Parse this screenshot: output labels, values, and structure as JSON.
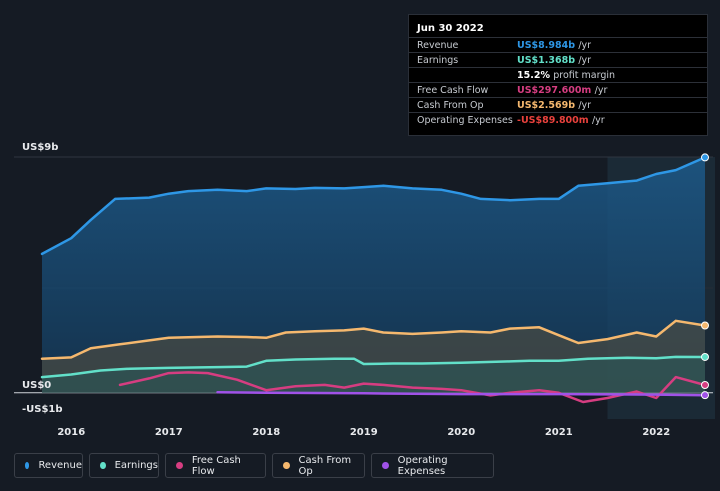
{
  "chart_data": {
    "type": "area",
    "y_top_label": "US$9b",
    "y_zero_label": "US$0",
    "y_bottom_label": "-US$1b",
    "ylim": [
      -1,
      9
    ],
    "xlim": [
      2015.7,
      2022.5
    ],
    "x_ticks": [
      "2016",
      "2017",
      "2018",
      "2019",
      "2020",
      "2021",
      "2022"
    ],
    "colors": {
      "revenue": "#2e97e6",
      "earnings": "#62e0c9",
      "fcf": "#d63d81",
      "cfo": "#f5b86e",
      "opex": "#a052e8"
    },
    "series": [
      {
        "name": "Revenue",
        "x": [
          2015.7,
          2016.0,
          2016.2,
          2016.45,
          2016.8,
          2017.0,
          2017.2,
          2017.5,
          2017.8,
          2018.0,
          2018.3,
          2018.5,
          2018.8,
          2019.0,
          2019.2,
          2019.5,
          2019.8,
          2020.0,
          2020.2,
          2020.5,
          2020.8,
          2021.0,
          2021.2,
          2021.5,
          2021.8,
          2022.0,
          2022.2,
          2022.5
        ],
        "values": [
          5.3,
          5.9,
          6.6,
          7.4,
          7.45,
          7.6,
          7.7,
          7.75,
          7.7,
          7.8,
          7.78,
          7.82,
          7.8,
          7.85,
          7.9,
          7.8,
          7.75,
          7.6,
          7.4,
          7.35,
          7.4,
          7.4,
          7.9,
          8.0,
          8.1,
          8.35,
          8.5,
          8.984
        ]
      },
      {
        "name": "Earnings",
        "x": [
          2015.7,
          2016.0,
          2016.3,
          2016.6,
          2017.0,
          2017.5,
          2017.8,
          2018.0,
          2018.3,
          2018.7,
          2018.9,
          2019.0,
          2019.3,
          2019.6,
          2020.0,
          2020.5,
          2020.7,
          2021.0,
          2021.3,
          2021.7,
          2022.0,
          2022.2,
          2022.5
        ],
        "values": [
          0.6,
          0.7,
          0.85,
          0.92,
          0.95,
          0.98,
          1.0,
          1.22,
          1.27,
          1.3,
          1.3,
          1.1,
          1.12,
          1.12,
          1.15,
          1.2,
          1.22,
          1.22,
          1.3,
          1.34,
          1.32,
          1.37,
          1.368
        ]
      },
      {
        "name": "Free Cash Flow",
        "x": [
          2016.5,
          2016.8,
          2017.0,
          2017.2,
          2017.4,
          2017.7,
          2018.0,
          2018.3,
          2018.6,
          2018.8,
          2019.0,
          2019.2,
          2019.5,
          2019.8,
          2020.0,
          2020.3,
          2020.5,
          2020.8,
          2021.0,
          2021.25,
          2021.5,
          2021.8,
          2022.0,
          2022.2,
          2022.5
        ],
        "values": [
          0.3,
          0.55,
          0.75,
          0.78,
          0.75,
          0.5,
          0.1,
          0.25,
          0.3,
          0.2,
          0.35,
          0.3,
          0.2,
          0.15,
          0.1,
          -0.1,
          0.0,
          0.1,
          0.0,
          -0.35,
          -0.2,
          0.05,
          -0.2,
          0.6,
          0.2976
        ]
      },
      {
        "name": "Cash From Op",
        "x": [
          2015.7,
          2016.0,
          2016.2,
          2016.5,
          2016.8,
          2017.0,
          2017.2,
          2017.5,
          2017.8,
          2018.0,
          2018.2,
          2018.5,
          2018.8,
          2019.0,
          2019.2,
          2019.5,
          2019.8,
          2020.0,
          2020.3,
          2020.5,
          2020.8,
          2021.0,
          2021.2,
          2021.5,
          2021.8,
          2022.0,
          2022.2,
          2022.5
        ],
        "values": [
          1.3,
          1.35,
          1.7,
          1.85,
          2.0,
          2.1,
          2.12,
          2.15,
          2.13,
          2.1,
          2.3,
          2.35,
          2.38,
          2.45,
          2.3,
          2.25,
          2.3,
          2.35,
          2.3,
          2.45,
          2.5,
          2.2,
          1.9,
          2.05,
          2.3,
          2.15,
          2.75,
          2.569
        ]
      },
      {
        "name": "Operating Expenses",
        "x": [
          2017.5,
          2018.0,
          2019.0,
          2020.0,
          2021.0,
          2022.0,
          2022.5
        ],
        "values": [
          0.02,
          0.0,
          -0.02,
          -0.05,
          -0.05,
          -0.07,
          -0.0898
        ]
      }
    ],
    "highlight_from": 2021.5
  },
  "tooltip": {
    "date": "Jun 30 2022",
    "rows": [
      {
        "label": "Revenue",
        "value": "US$8.984b",
        "unit": "/yr",
        "color": "#2e97e6"
      },
      {
        "label": "Earnings",
        "value": "US$1.368b",
        "unit": "/yr",
        "color": "#62e0c9"
      },
      {
        "label": "",
        "value": "15.2%",
        "unit": "profit margin",
        "color": "#ffffff"
      },
      {
        "label": "Free Cash Flow",
        "value": "US$297.600m",
        "unit": "/yr",
        "color": "#d63d81"
      },
      {
        "label": "Cash From Op",
        "value": "US$2.569b",
        "unit": "/yr",
        "color": "#f5b86e"
      },
      {
        "label": "Operating Expenses",
        "value": "-US$89.800m",
        "unit": "/yr",
        "color": "#e8413c"
      }
    ]
  },
  "legend": [
    {
      "label": "Revenue",
      "color": "#2e97e6"
    },
    {
      "label": "Earnings",
      "color": "#62e0c9"
    },
    {
      "label": "Free Cash Flow",
      "color": "#d63d81"
    },
    {
      "label": "Cash From Op",
      "color": "#f5b86e"
    },
    {
      "label": "Operating Expenses",
      "color": "#a052e8"
    }
  ]
}
